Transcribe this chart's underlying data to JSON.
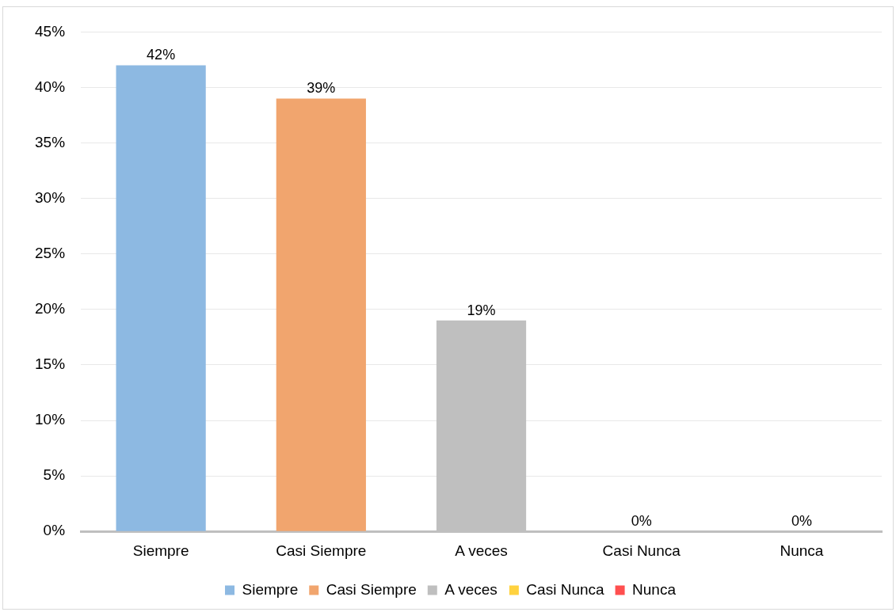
{
  "chart_data": {
    "type": "bar",
    "categories": [
      "Siempre",
      "Casi Siempre",
      "A veces",
      "Casi Nunca",
      "Nunca"
    ],
    "series": [
      {
        "name": "Siempre",
        "color": "#8db9e2",
        "values": [
          42,
          null,
          null,
          null,
          null
        ],
        "value_labels": [
          "42%",
          null,
          null,
          null,
          null
        ]
      },
      {
        "name": "Casi Siempre",
        "color": "#f1a56e",
        "values": [
          null,
          39,
          null,
          null,
          null
        ],
        "value_labels": [
          null,
          "39%",
          null,
          null,
          null
        ]
      },
      {
        "name": "A veces",
        "color": "#bfbfbf",
        "values": [
          null,
          null,
          19,
          null,
          null
        ],
        "value_labels": [
          null,
          null,
          "19%",
          null,
          null
        ]
      },
      {
        "name": "Casi Nunca",
        "color": "#ffd23f",
        "values": [
          null,
          null,
          null,
          0,
          null
        ],
        "value_labels": [
          null,
          null,
          null,
          "0%",
          null
        ]
      },
      {
        "name": "Nunca",
        "color": "#ff4f4f",
        "values": [
          null,
          null,
          null,
          null,
          0
        ],
        "value_labels": [
          null,
          null,
          null,
          null,
          "0%"
        ]
      }
    ],
    "ylim": [
      0,
      45
    ],
    "yticks": [
      {
        "value": 0,
        "label": "0%"
      },
      {
        "value": 5,
        "label": "5%"
      },
      {
        "value": 10,
        "label": "10%"
      },
      {
        "value": 15,
        "label": "15%"
      },
      {
        "value": 20,
        "label": "20%"
      },
      {
        "value": 25,
        "label": "25%"
      },
      {
        "value": 30,
        "label": "30%"
      },
      {
        "value": 35,
        "label": "35%"
      },
      {
        "value": 40,
        "label": "40%"
      },
      {
        "value": 45,
        "label": "45%"
      }
    ],
    "grid": "y",
    "legend": "bottom"
  }
}
